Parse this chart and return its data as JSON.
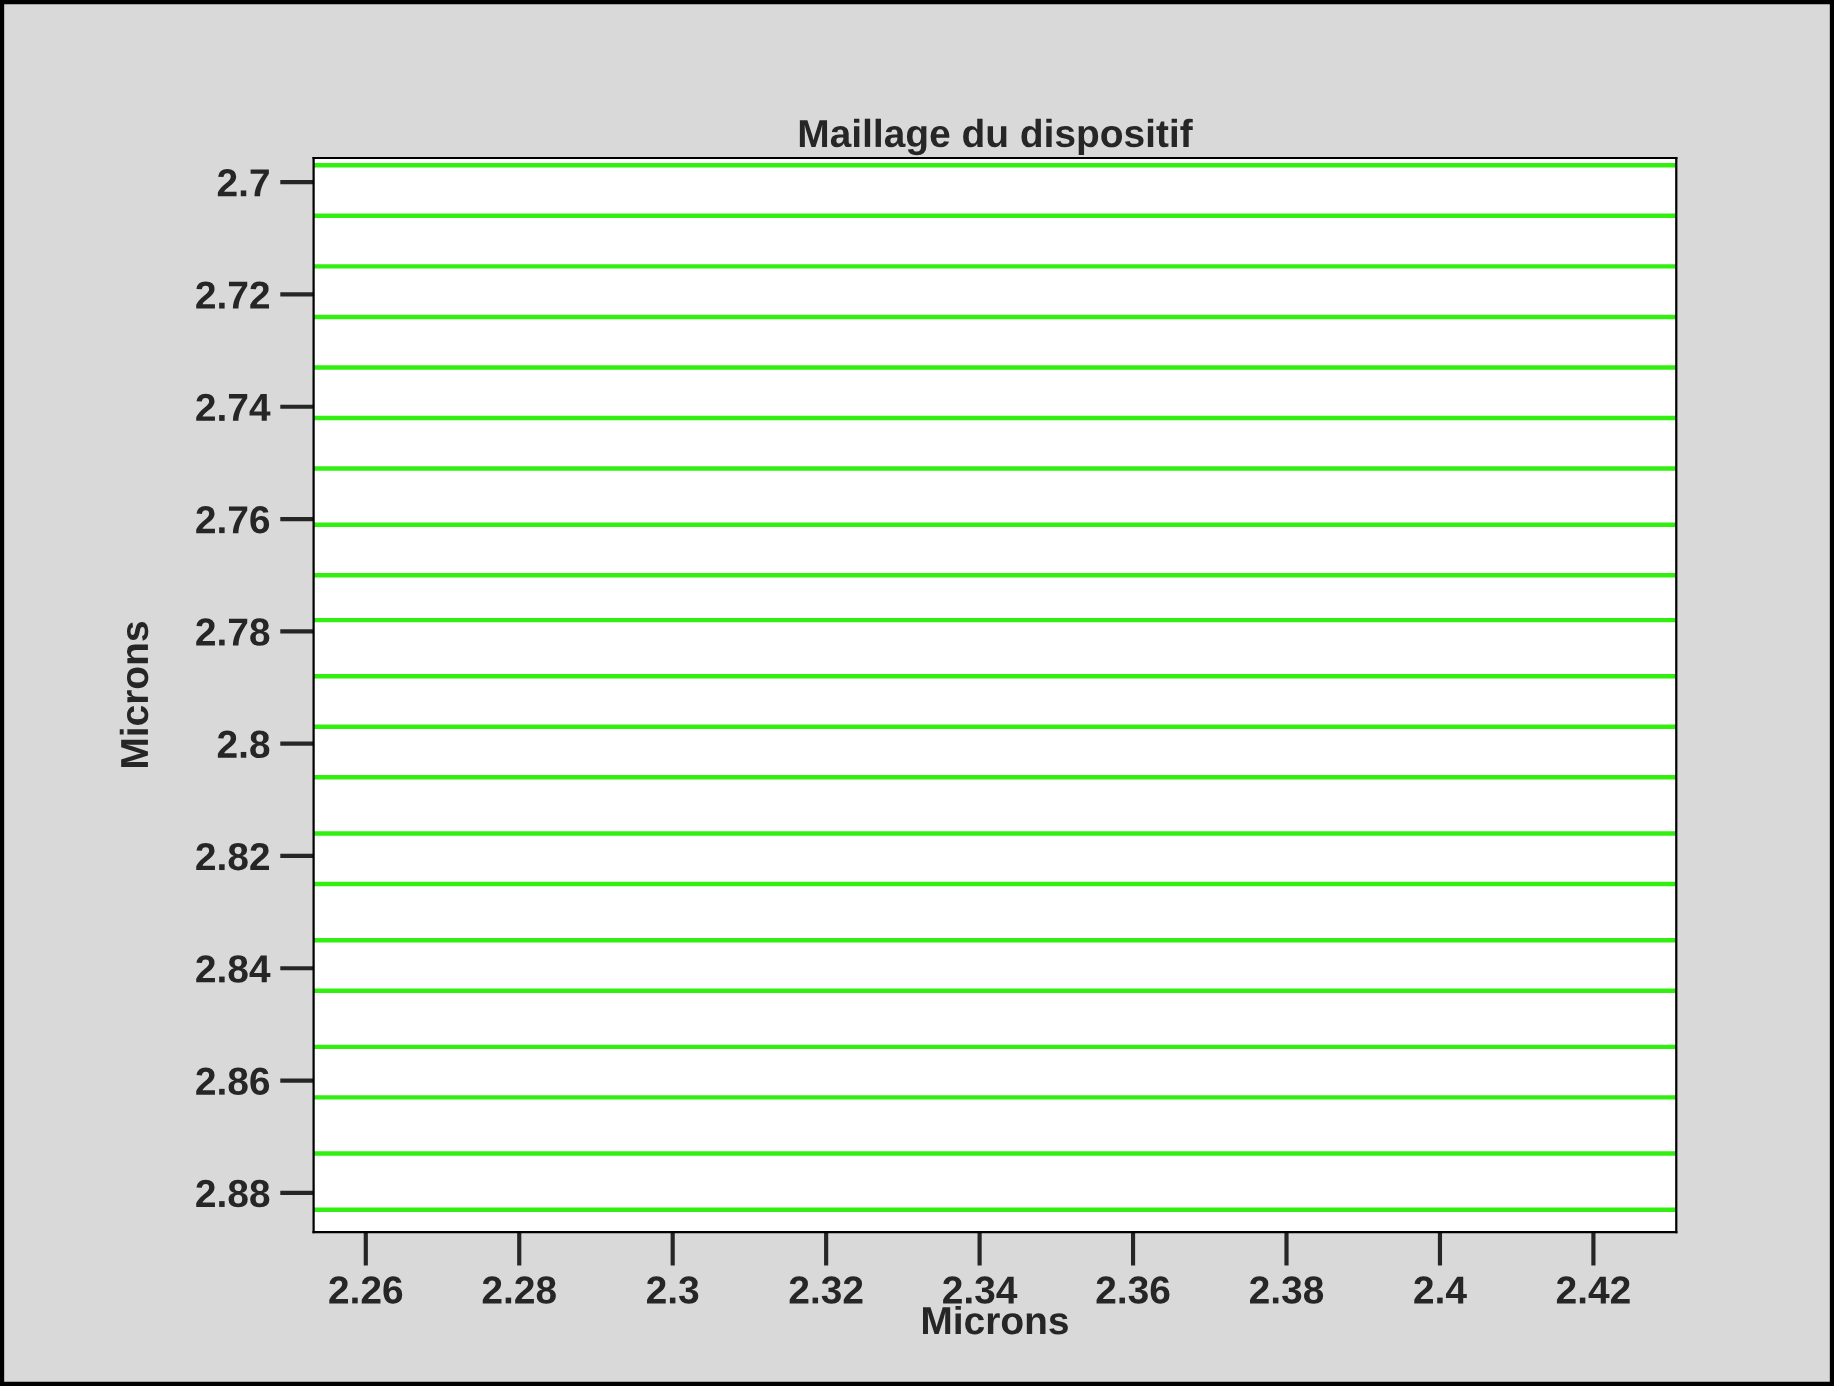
{
  "chart_data": {
    "type": "line",
    "title": "Maillage du dispositif",
    "xlabel": "Microns",
    "ylabel": "Microns",
    "x": [
      2.2532,
      2.4308
    ],
    "series": [
      {
        "color": "#33ee11",
        "values": [
          2.697,
          2.697
        ]
      },
      {
        "color": "#33ee11",
        "values": [
          2.706,
          2.706
        ]
      },
      {
        "color": "#33ee11",
        "values": [
          2.715,
          2.715
        ]
      },
      {
        "color": "#33ee11",
        "values": [
          2.724,
          2.724
        ]
      },
      {
        "color": "#33ee11",
        "values": [
          2.733,
          2.733
        ]
      },
      {
        "color": "#33ee11",
        "values": [
          2.742,
          2.742
        ]
      },
      {
        "color": "#33ee11",
        "values": [
          2.751,
          2.751
        ]
      },
      {
        "color": "#33ee11",
        "values": [
          2.761,
          2.761
        ]
      },
      {
        "color": "#33ee11",
        "values": [
          2.77,
          2.77
        ]
      },
      {
        "color": "#33ee11",
        "values": [
          2.778,
          2.778
        ]
      },
      {
        "color": "#33ee11",
        "values": [
          2.788,
          2.788
        ]
      },
      {
        "color": "#33ee11",
        "values": [
          2.797,
          2.797
        ]
      },
      {
        "color": "#33ee11",
        "values": [
          2.806,
          2.806
        ]
      },
      {
        "color": "#33ee11",
        "values": [
          2.816,
          2.816
        ]
      },
      {
        "color": "#33ee11",
        "values": [
          2.825,
          2.825
        ]
      },
      {
        "color": "#33ee11",
        "values": [
          2.835,
          2.835
        ]
      },
      {
        "color": "#33ee11",
        "values": [
          2.844,
          2.844
        ]
      },
      {
        "color": "#33ee11",
        "values": [
          2.854,
          2.854
        ]
      },
      {
        "color": "#33ee11",
        "values": [
          2.863,
          2.863
        ]
      },
      {
        "color": "#33ee11",
        "values": [
          2.873,
          2.873
        ]
      },
      {
        "color": "#33ee11",
        "values": [
          2.883,
          2.883
        ]
      }
    ],
    "xlim": [
      2.2532,
      2.4308
    ],
    "ylim": [
      2.887,
      2.6957
    ],
    "xticks": [
      2.26,
      2.28,
      {
        "value": 2.3,
        "label": "2.3"
      },
      2.32,
      2.34,
      2.36,
      2.38,
      {
        "value": 2.4,
        "label": "2.4"
      },
      2.42
    ],
    "yticks": [
      {
        "value": 2.7,
        "label": "2.7"
      },
      2.72,
      2.74,
      2.76,
      2.78,
      {
        "value": 2.8,
        "label": "2.8"
      },
      2.82,
      2.84,
      2.86,
      2.88
    ],
    "grid": false,
    "legend": false,
    "marker": "none",
    "line_style": "solid"
  }
}
